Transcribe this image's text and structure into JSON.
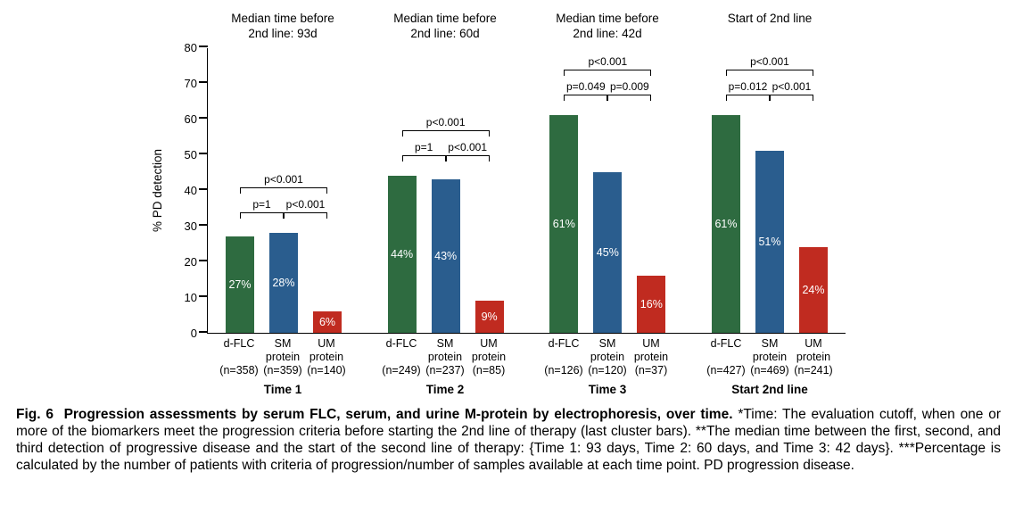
{
  "chart_data": {
    "type": "bar",
    "title": "",
    "xlabel": "",
    "ylabel": "% PD detection",
    "ylim": [
      0,
      80
    ],
    "yticks": [
      0,
      10,
      20,
      30,
      40,
      50,
      60,
      70,
      80
    ],
    "legend_position": "none",
    "grid": false,
    "series_colors": {
      "d-FLC": "#2e6b40",
      "SM protein": "#2a5d8e",
      "UM protein": "#c02b20"
    },
    "groups": [
      {
        "name": "Time 1",
        "header_lines": [
          "Median time before",
          "2nd line: 93d"
        ],
        "bars": [
          {
            "series": "d-FLC",
            "label_lines": [
              "d-FLC",
              ""
            ],
            "n_label": "(n=358)",
            "value": 27,
            "value_label": "27%",
            "color": "#2e6b40"
          },
          {
            "series": "SM protein",
            "label_lines": [
              "SM",
              "protein"
            ],
            "n_label": "(n=359)",
            "value": 28,
            "value_label": "28%",
            "color": "#2a5d8e"
          },
          {
            "series": "UM protein",
            "label_lines": [
              "UM",
              "protein"
            ],
            "n_label": "(n=140)",
            "value": 6,
            "value_label": "6%",
            "color": "#c02b20"
          }
        ],
        "p_values": {
          "pair_left": "p=1",
          "pair_right": "p<0.001",
          "overall": "p<0.001"
        }
      },
      {
        "name": "Time 2",
        "header_lines": [
          "Median time before",
          "2nd line: 60d"
        ],
        "bars": [
          {
            "series": "d-FLC",
            "label_lines": [
              "d-FLC",
              ""
            ],
            "n_label": "(n=249)",
            "value": 44,
            "value_label": "44%",
            "color": "#2e6b40"
          },
          {
            "series": "SM protein",
            "label_lines": [
              "SM",
              "protein"
            ],
            "n_label": "(n=237)",
            "value": 43,
            "value_label": "43%",
            "color": "#2a5d8e"
          },
          {
            "series": "UM protein",
            "label_lines": [
              "UM",
              "protein"
            ],
            "n_label": "(n=85)",
            "value": 9,
            "value_label": "9%",
            "color": "#c02b20"
          }
        ],
        "p_values": {
          "pair_left": "p=1",
          "pair_right": "p<0.001",
          "overall": "p<0.001"
        }
      },
      {
        "name": "Time 3",
        "header_lines": [
          "Median time before",
          "2nd line: 42d"
        ],
        "bars": [
          {
            "series": "d-FLC",
            "label_lines": [
              "d-FLC",
              ""
            ],
            "n_label": "(n=126)",
            "value": 61,
            "value_label": "61%",
            "color": "#2e6b40"
          },
          {
            "series": "SM protein",
            "label_lines": [
              "SM",
              "protein"
            ],
            "n_label": "(n=120)",
            "value": 45,
            "value_label": "45%",
            "color": "#2a5d8e"
          },
          {
            "series": "UM protein",
            "label_lines": [
              "UM",
              "protein"
            ],
            "n_label": "(n=37)",
            "value": 16,
            "value_label": "16%",
            "color": "#c02b20"
          }
        ],
        "p_values": {
          "pair_left": "p=0.049",
          "pair_right": "p=0.009",
          "overall": "p<0.001"
        }
      },
      {
        "name": "Start 2nd line",
        "header_lines": [
          "Start of 2nd line",
          ""
        ],
        "bars": [
          {
            "series": "d-FLC",
            "label_lines": [
              "d-FLC",
              ""
            ],
            "n_label": "(n=427)",
            "value": 61,
            "value_label": "61%",
            "color": "#2e6b40"
          },
          {
            "series": "SM protein",
            "label_lines": [
              "SM",
              "protein"
            ],
            "n_label": "(n=469)",
            "value": 51,
            "value_label": "51%",
            "color": "#2a5d8e"
          },
          {
            "series": "UM protein",
            "label_lines": [
              "UM",
              "protein"
            ],
            "n_label": "(n=241)",
            "value": 24,
            "value_label": "24%",
            "color": "#c02b20"
          }
        ],
        "p_values": {
          "pair_left": "p=0.012",
          "pair_right": "p<0.001",
          "overall": "p<0.001"
        }
      }
    ]
  },
  "caption": {
    "label": "Fig. 6",
    "title": "Progression assessments by serum FLC, serum, and urine M-protein by electrophoresis, over time.",
    "body": "*Time: The evaluation cutoff, when one or more of the biomarkers meet the progression criteria before starting the 2nd line of therapy (last cluster bars). **The median time between the first, second, and third detection of progressive disease and the start of the second line of therapy: {Time 1: 93 days, Time 2: 60 days, and Time 3: 42 days}. ***Percentage is calculated by the number of patients with criteria of progression/number of samples available at each time point. PD progression disease."
  }
}
